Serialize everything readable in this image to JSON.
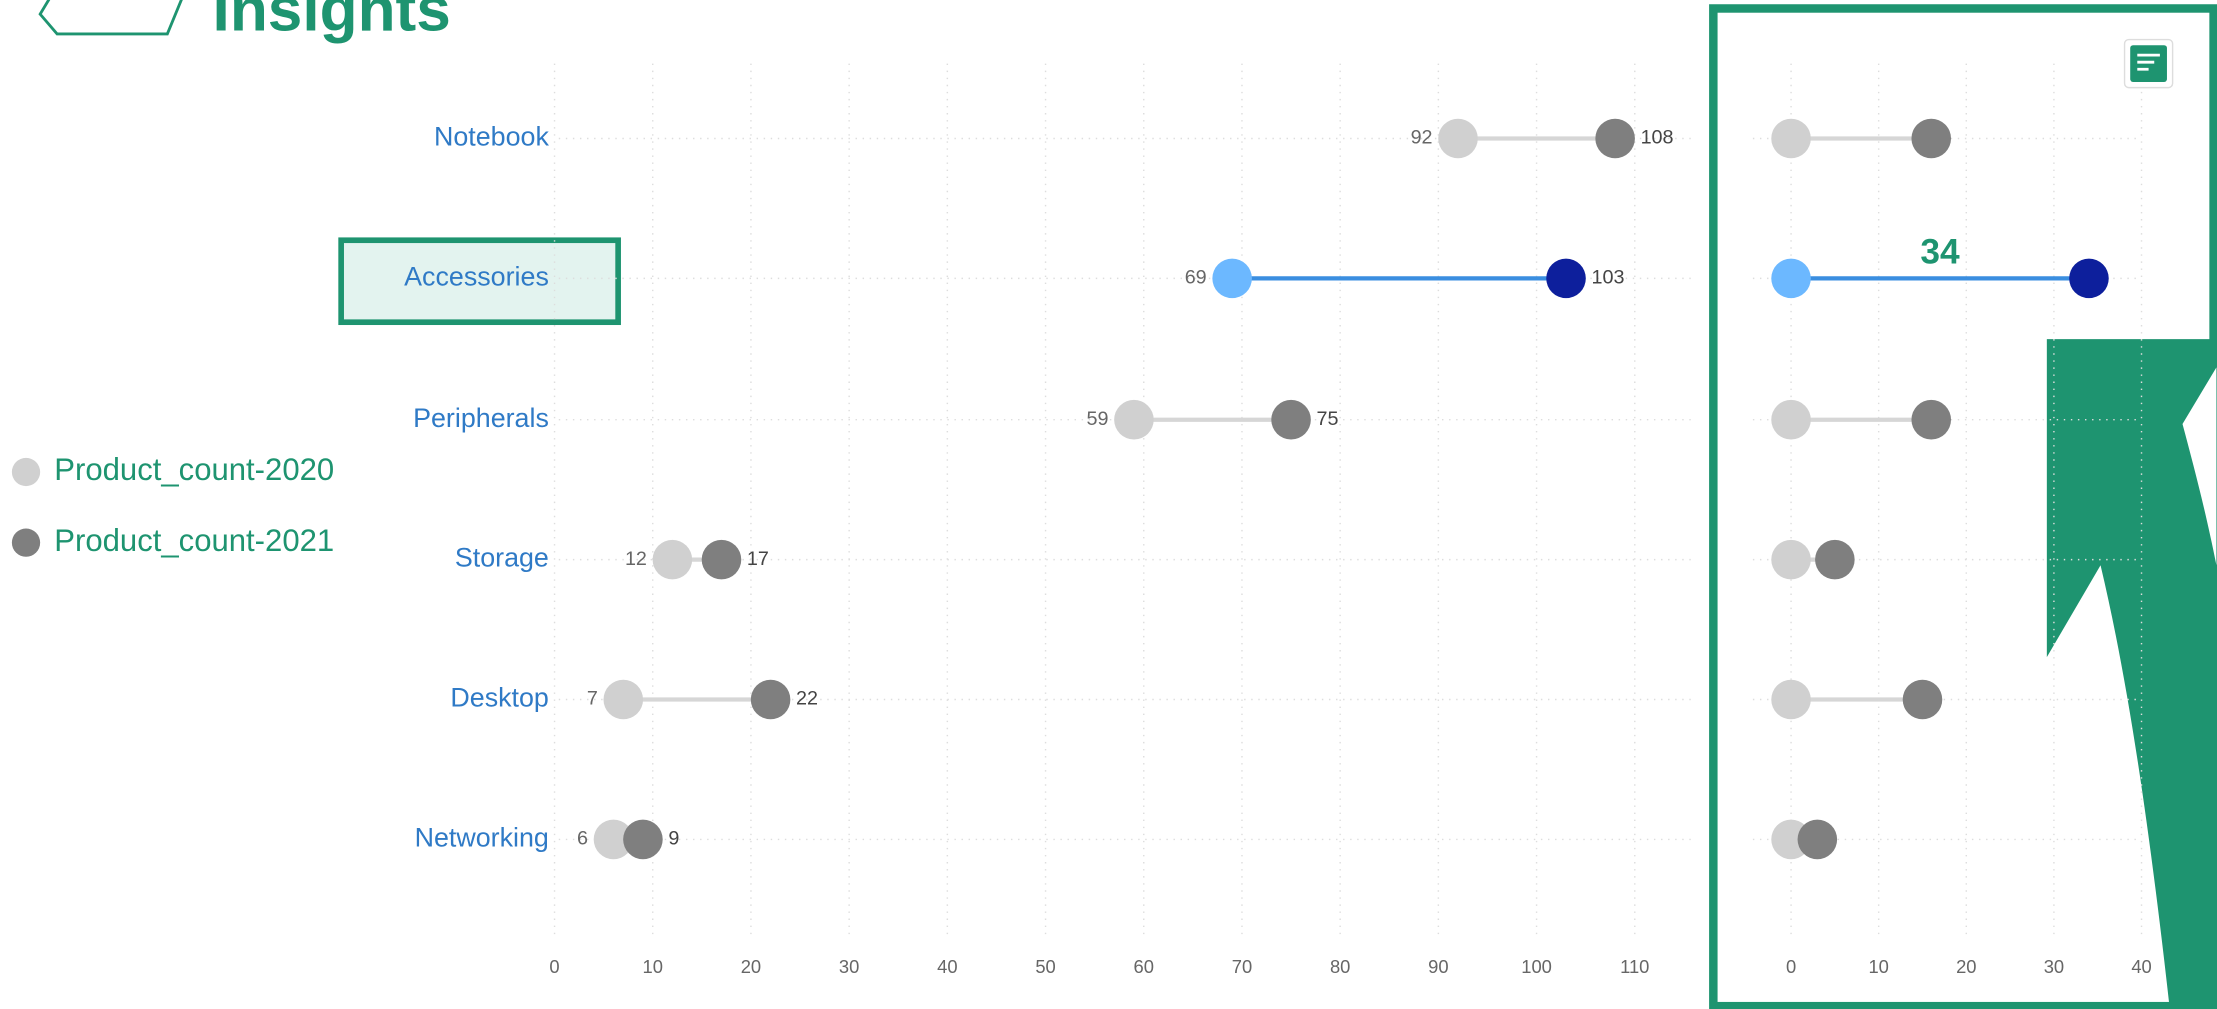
{
  "title": "Insights",
  "chart_data": [
    {
      "type": "dumbbell",
      "categories": [
        "Notebook",
        "Accessories",
        "Peripherals",
        "Storage",
        "Desktop",
        "Networking"
      ],
      "series": [
        {
          "name": "Product_count-2020",
          "color": "#d0d0d0",
          "values": [
            92,
            69,
            59,
            12,
            7,
            6
          ]
        },
        {
          "name": "Product_count-2021",
          "color": "#7f7f7f",
          "values": [
            108,
            103,
            75,
            17,
            22,
            9
          ]
        }
      ],
      "xlim": [
        0,
        118
      ],
      "xticks": [
        0,
        10,
        20,
        30,
        40,
        50,
        60,
        70,
        80,
        90,
        100,
        110
      ],
      "grid": true,
      "highlight": 1,
      "highlight_colors": [
        "#6cb8ff",
        "#0d1f9c"
      ],
      "highlight_line_color": "#3a8ee0"
    },
    {
      "type": "dumbbell",
      "series": [
        {
          "color": "#d0d0d0",
          "values": [
            0,
            0,
            0,
            0,
            0,
            0
          ]
        },
        {
          "color": "#7f7f7f",
          "values": [
            16,
            34,
            16,
            5,
            15,
            3
          ]
        }
      ],
      "xlim": [
        0,
        40
      ],
      "xticks": [
        0,
        10,
        20,
        30,
        40
      ],
      "grid": true,
      "highlight": 1,
      "highlight_colors": [
        "#6cb8ff",
        "#0d1f9c"
      ],
      "highlight_line_color": "#3a8ee0"
    }
  ]
}
